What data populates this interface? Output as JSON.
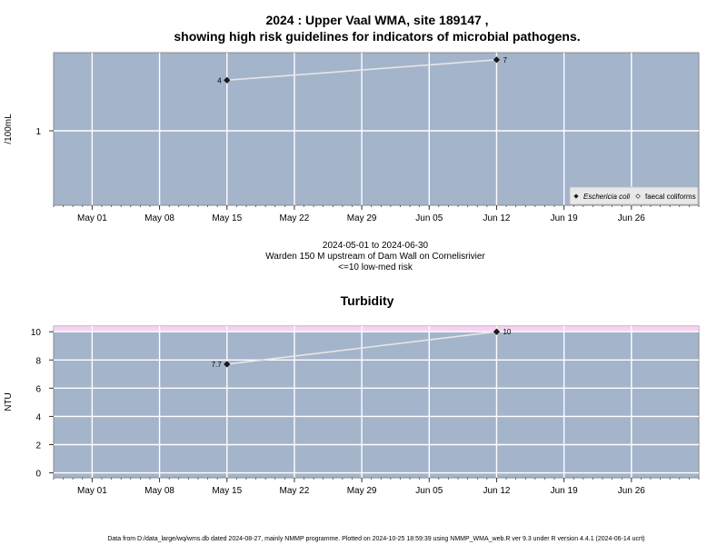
{
  "page": {
    "title_line1": "2024 : Upper Vaal WMA, site 189147 ,",
    "title_line2": "showing high risk guidelines for indicators of microbial pathogens.",
    "caption_line1": "2024-05-01 to 2024-06-30",
    "caption_line2": "Warden 150 M upstream of Dam Wall on Cornelisrivier",
    "caption_line3": "<=10 low-med risk",
    "footer": "Data from D:/data_large/wq/wms.db dated 2024-08-27, mainly NMMP programme. Plotted on 2024-10-25 18:59:39 using NMMP_WMA_web.R ver 9.3 under R version 4.4.1 (2024-06-14 ucrt)"
  },
  "colors": {
    "panel_bg": "#a4b4cb",
    "grid": "#ffffff",
    "line": "#e6e6e6",
    "point": "#1a1a1a",
    "risk_band": "#f4d3f0"
  },
  "chart_data": [
    {
      "type": "line",
      "title": "",
      "ylabel": "/100mL",
      "xlabel": "",
      "yscale": "log",
      "x_ticks": [
        "May 01",
        "May 08",
        "May 15",
        "May 22",
        "May 29",
        "Jun 05",
        "Jun 12",
        "Jun 19",
        "Jun 26"
      ],
      "x_tick_dates": [
        "2024-05-01",
        "2024-05-08",
        "2024-05-15",
        "2024-05-22",
        "2024-05-29",
        "2024-06-05",
        "2024-06-12",
        "2024-06-19",
        "2024-06-26"
      ],
      "xlim": [
        "2024-04-27",
        "2024-07-03"
      ],
      "y_ticks": [
        "1"
      ],
      "y_tick_values": [
        1
      ],
      "ylim": [
        0.13,
        8.5
      ],
      "grid": true,
      "legend_position": "bottom-right",
      "series": [
        {
          "name": "Eschericia coli",
          "marker": "filled-diamond",
          "x": [
            "2024-05-15",
            "2024-06-12"
          ],
          "y": [
            4,
            7
          ],
          "labels": [
            "4",
            "7"
          ]
        },
        {
          "name": "faecal coliforms",
          "marker": "open-diamond",
          "x": [],
          "y": [],
          "labels": []
        }
      ]
    },
    {
      "type": "line",
      "title": "Turbidity",
      "ylabel": "NTU",
      "xlabel": "",
      "x_ticks": [
        "May 01",
        "May 08",
        "May 15",
        "May 22",
        "May 29",
        "Jun 05",
        "Jun 12",
        "Jun 19",
        "Jun 26"
      ],
      "x_tick_dates": [
        "2024-05-01",
        "2024-05-08",
        "2024-05-15",
        "2024-05-22",
        "2024-05-29",
        "2024-06-05",
        "2024-06-12",
        "2024-06-19",
        "2024-06-26"
      ],
      "xlim": [
        "2024-04-27",
        "2024-07-03"
      ],
      "y_ticks": [
        "0",
        "2",
        "4",
        "6",
        "8",
        "10"
      ],
      "y_tick_values": [
        0,
        2,
        4,
        6,
        8,
        10
      ],
      "ylim": [
        -0.35,
        10.4
      ],
      "risk_band": [
        10,
        10.4
      ],
      "grid": true,
      "series": [
        {
          "name": "",
          "marker": "filled-diamond",
          "x": [
            "2024-05-15",
            "2024-06-12"
          ],
          "y": [
            7.7,
            10
          ],
          "labels": [
            "7.7",
            "10"
          ]
        }
      ]
    }
  ]
}
